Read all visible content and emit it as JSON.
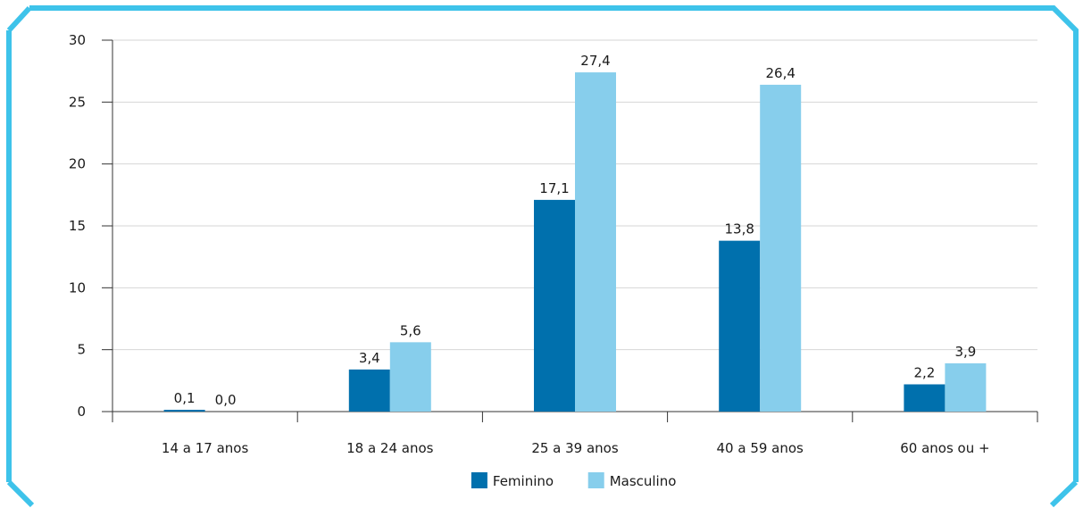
{
  "frame_color": "#3ec3ea",
  "chart_data": {
    "type": "bar",
    "categories": [
      "14 a 17 anos",
      "18 a 24 anos",
      "25 a 39 anos",
      "40 a 59 anos",
      "60 anos ou +"
    ],
    "series": [
      {
        "name": "Feminino",
        "color": "#0070ad",
        "values": [
          0.1,
          3.4,
          17.1,
          13.8,
          2.2
        ],
        "labels": [
          "0,1",
          "3,4",
          "17,1",
          "13,8",
          "2,2"
        ]
      },
      {
        "name": "Masculino",
        "color": "#87ceec",
        "values": [
          0.0,
          5.6,
          27.4,
          26.4,
          3.9
        ],
        "labels": [
          "0,0",
          "5,6",
          "27,4",
          "26,4",
          "3,9"
        ]
      }
    ],
    "yticks": [
      "0",
      "5",
      "10",
      "15",
      "20",
      "25",
      "30"
    ],
    "ylim": [
      0,
      30
    ],
    "grid": true,
    "legend": "bottom-center",
    "title": "",
    "xlabel": "",
    "ylabel": ""
  }
}
